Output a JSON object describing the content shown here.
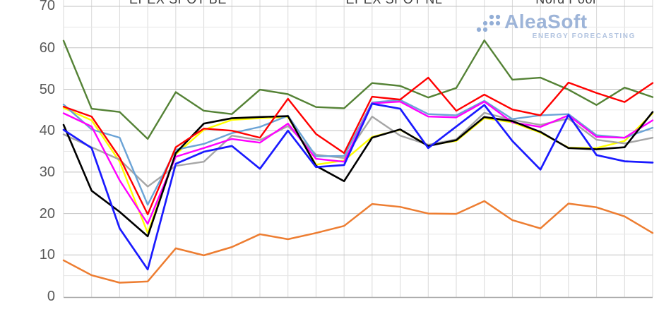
{
  "legend": {
    "items": [
      {
        "label": "EPEX SPOT BE"
      },
      {
        "label": "EPEX SPOT NL"
      },
      {
        "label": "Nord Pool"
      }
    ]
  },
  "logo": {
    "wordmark": "AleaSoft",
    "subtitle": "ENERGY FORECASTING",
    "color": "#9db4d8"
  },
  "chart_data": {
    "type": "line",
    "title": "",
    "points": 22,
    "x_axis": {
      "tick_labels_visible": false
    },
    "y_axis": {
      "min": 0,
      "max": 70,
      "tick_step": 10,
      "minor_step": 5
    },
    "y_tick_labels": [
      "70",
      "60",
      "50",
      "40",
      "30",
      "20",
      "10",
      "0"
    ],
    "grid": true,
    "legend_position": "top-clipped",
    "legend_visible_labels": [
      "EPEX SPOT BE",
      "EPEX SPOT NL",
      "Nord Pool"
    ],
    "series": [
      {
        "id": "yellow",
        "color": "#ffff00",
        "width": 2.4,
        "values": [
          45.5,
          42.5,
          32.5,
          15.3,
          34.3,
          40.2,
          42.6,
          43.0,
          43.3,
          31.8,
          32.8,
          38.5,
          40.2,
          36.5,
          37.5,
          43.0,
          42.0,
          39.5,
          35.9,
          35.8,
          37.5,
          44.2
        ]
      },
      {
        "id": "gray",
        "label": "EPEX SPOT BE",
        "color": "#a6a6a6",
        "width": 2.4,
        "values": [
          39.1,
          36.0,
          33.0,
          26.5,
          31.5,
          32.5,
          38.8,
          37.7,
          41.1,
          34.2,
          33.4,
          43.4,
          38.8,
          36.6,
          37.9,
          44.3,
          42.6,
          41.4,
          42.9,
          37.8,
          36.9,
          38.3
        ]
      },
      {
        "id": "lightblue",
        "label": "EPEX SPOT NL",
        "color": "#6ba3d6",
        "width": 2.4,
        "values": [
          46.3,
          40.3,
          38.3,
          22.1,
          35.4,
          36.8,
          39.4,
          40.9,
          43.6,
          33.8,
          33.9,
          46.8,
          47.4,
          44.0,
          43.7,
          47.2,
          42.8,
          43.7,
          44.0,
          38.9,
          38.3,
          40.7
        ]
      },
      {
        "id": "magenta",
        "color": "#ff00ff",
        "width": 2.4,
        "values": [
          44.2,
          41.0,
          28.0,
          17.5,
          33.7,
          35.8,
          38.0,
          37.1,
          41.7,
          33.2,
          32.5,
          46.6,
          47.0,
          43.4,
          43.2,
          47.0,
          42.0,
          40.9,
          43.7,
          38.5,
          38.3,
          42.5
        ]
      },
      {
        "id": "black",
        "color": "#000000",
        "width": 2.6,
        "values": [
          41.4,
          25.5,
          20.4,
          14.5,
          34.6,
          41.7,
          43.0,
          43.3,
          43.5,
          31.5,
          27.8,
          38.3,
          40.3,
          36.3,
          37.7,
          43.3,
          42.3,
          39.7,
          35.8,
          35.5,
          36.0,
          44.5
        ]
      },
      {
        "id": "blue",
        "color": "#1a1aff",
        "width": 2.7,
        "values": [
          40.2,
          35.8,
          16.4,
          6.5,
          32.0,
          34.9,
          36.3,
          30.8,
          40.0,
          31.2,
          31.7,
          46.5,
          45.3,
          35.8,
          41.0,
          46.2,
          37.5,
          30.6,
          43.8,
          34.1,
          32.6,
          32.3
        ]
      },
      {
        "id": "green",
        "color": "#548235",
        "width": 2.4,
        "values": [
          61.7,
          45.3,
          44.5,
          38.0,
          49.3,
          44.8,
          44.0,
          49.9,
          48.8,
          45.7,
          45.4,
          51.5,
          50.8,
          48.0,
          50.3,
          61.8,
          52.3,
          52.8,
          49.9,
          46.2,
          50.4,
          48.1
        ]
      },
      {
        "id": "red",
        "color": "#ff0000",
        "width": 2.4,
        "values": [
          45.8,
          43.4,
          33.5,
          19.8,
          36.0,
          40.5,
          40.0,
          38.3,
          47.7,
          39.2,
          34.6,
          48.2,
          47.5,
          52.8,
          44.8,
          48.7,
          45.1,
          43.7,
          51.6,
          49.1,
          46.9,
          51.5
        ]
      },
      {
        "id": "orange",
        "label": "Nord Pool",
        "color": "#ed7d31",
        "width": 2.5,
        "values": [
          8.7,
          5.1,
          3.3,
          3.6,
          11.6,
          9.9,
          11.9,
          15.0,
          13.8,
          15.3,
          17.0,
          22.3,
          21.6,
          20.0,
          19.9,
          23.0,
          18.4,
          16.4,
          22.4,
          21.5,
          19.3,
          15.3
        ]
      }
    ]
  }
}
